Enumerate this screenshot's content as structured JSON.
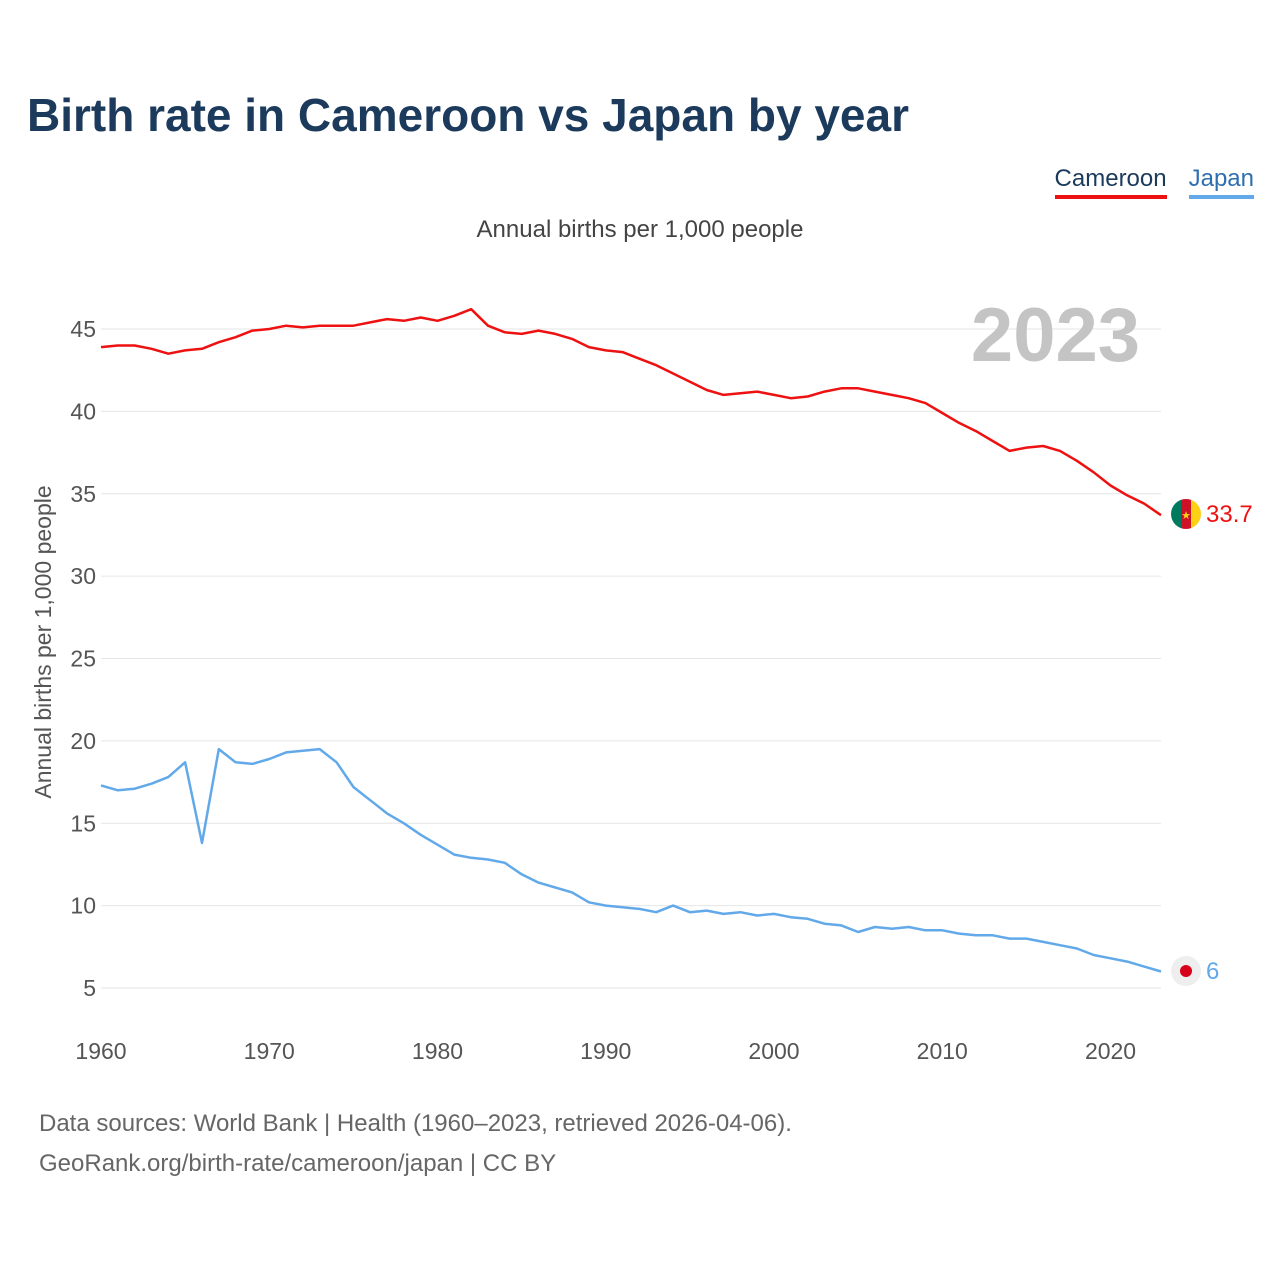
{
  "title": "Birth rate in Cameroon vs Japan by year",
  "subtitle": "Annual births per 1,000 people",
  "legend": [
    {
      "name": "Cameroon",
      "color": "#ee1111"
    },
    {
      "name": "Japan",
      "color": "#62a9ea"
    }
  ],
  "footer": {
    "line1": "Data sources: World Bank | Health (1960–2023, retrieved 2026-04-06).",
    "line2": "GeoRank.org/birth-rate/cameroon/japan | CC BY"
  },
  "chart_data": {
    "type": "line",
    "title": "Birth rate in Cameroon vs Japan by year",
    "subtitle": "Annual births per 1,000 people",
    "xlabel": "",
    "ylabel": "Annual births per 1,000 people",
    "year_watermark": "2023",
    "xlim": [
      1960,
      2023
    ],
    "ylim": [
      3,
      48
    ],
    "x_ticks": [
      1960,
      1970,
      1980,
      1990,
      2000,
      2010,
      2020
    ],
    "y_ticks": [
      5,
      10,
      15,
      20,
      25,
      30,
      35,
      40,
      45
    ],
    "grid": true,
    "x": [
      1960,
      1961,
      1962,
      1963,
      1964,
      1965,
      1966,
      1967,
      1968,
      1969,
      1970,
      1971,
      1972,
      1973,
      1974,
      1975,
      1976,
      1977,
      1978,
      1979,
      1980,
      1981,
      1982,
      1983,
      1984,
      1985,
      1986,
      1987,
      1988,
      1989,
      1990,
      1991,
      1992,
      1993,
      1994,
      1995,
      1996,
      1997,
      1998,
      1999,
      2000,
      2001,
      2002,
      2003,
      2004,
      2005,
      2006,
      2007,
      2008,
      2009,
      2010,
      2011,
      2012,
      2013,
      2014,
      2015,
      2016,
      2017,
      2018,
      2019,
      2020,
      2021,
      2022,
      2023
    ],
    "series": [
      {
        "name": "Cameroon",
        "color": "#ee1111",
        "end_label": "33.7",
        "values": [
          43.9,
          44.0,
          44.0,
          43.8,
          43.5,
          43.7,
          43.8,
          44.2,
          44.5,
          44.9,
          45.0,
          45.2,
          45.1,
          45.2,
          45.2,
          45.2,
          45.4,
          45.6,
          45.5,
          45.7,
          45.5,
          45.8,
          46.2,
          45.2,
          44.8,
          44.7,
          44.9,
          44.7,
          44.4,
          43.9,
          43.7,
          43.6,
          43.2,
          42.8,
          42.3,
          41.8,
          41.3,
          41.0,
          41.1,
          41.2,
          41.0,
          40.8,
          40.9,
          41.2,
          41.4,
          41.4,
          41.2,
          41.0,
          40.8,
          40.5,
          39.9,
          39.3,
          38.8,
          38.2,
          37.6,
          37.8,
          37.9,
          37.6,
          37.0,
          36.3,
          35.5,
          34.9,
          34.4,
          33.7
        ]
      },
      {
        "name": "Japan",
        "color": "#62a9ea",
        "end_label": "6",
        "values": [
          17.3,
          17.0,
          17.1,
          17.4,
          17.8,
          18.7,
          13.8,
          19.5,
          18.7,
          18.6,
          18.9,
          19.3,
          19.4,
          19.5,
          18.7,
          17.2,
          16.4,
          15.6,
          15.0,
          14.3,
          13.7,
          13.1,
          12.9,
          12.8,
          12.6,
          11.9,
          11.4,
          11.1,
          10.8,
          10.2,
          10.0,
          9.9,
          9.8,
          9.6,
          10.0,
          9.6,
          9.7,
          9.5,
          9.6,
          9.4,
          9.5,
          9.3,
          9.2,
          8.9,
          8.8,
          8.4,
          8.7,
          8.6,
          8.7,
          8.5,
          8.5,
          8.3,
          8.2,
          8.2,
          8.0,
          8.0,
          7.8,
          7.6,
          7.4,
          7.0,
          6.8,
          6.6,
          6.3,
          6.0
        ]
      }
    ]
  }
}
